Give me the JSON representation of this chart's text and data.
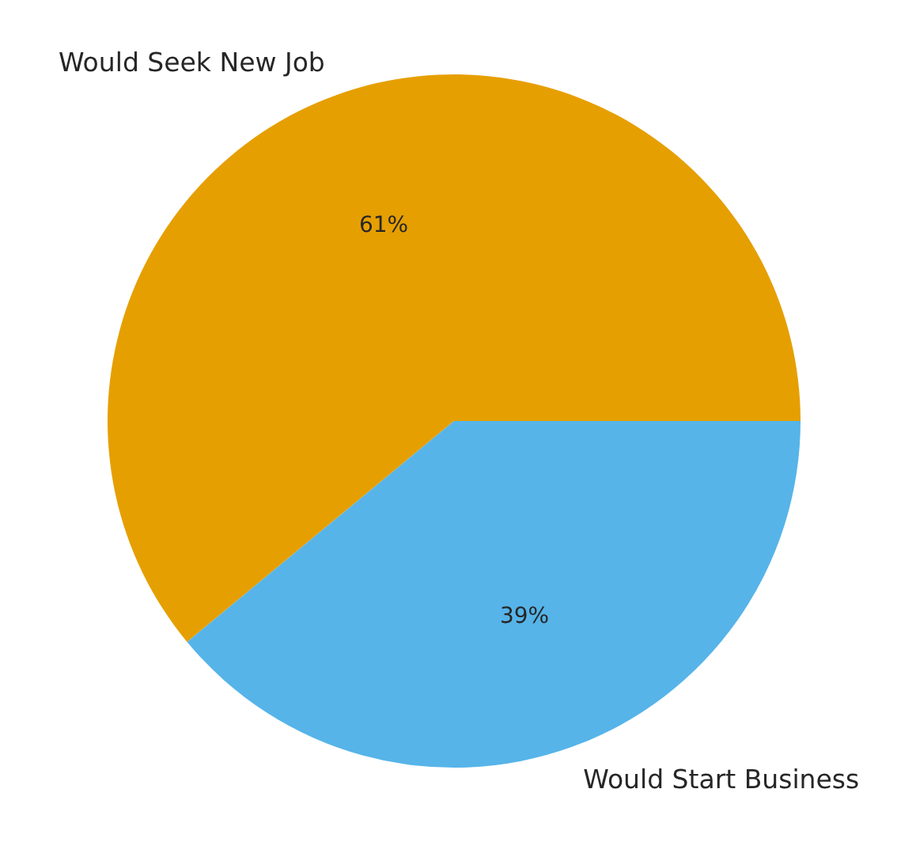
{
  "chart_data": {
    "type": "pie",
    "categories": [
      "Would Seek New Job",
      "Would Start Business"
    ],
    "values": [
      61,
      39
    ],
    "colors": [
      "#e69f00",
      "#56b4e9"
    ],
    "value_labels": [
      "61%",
      "39%"
    ]
  }
}
